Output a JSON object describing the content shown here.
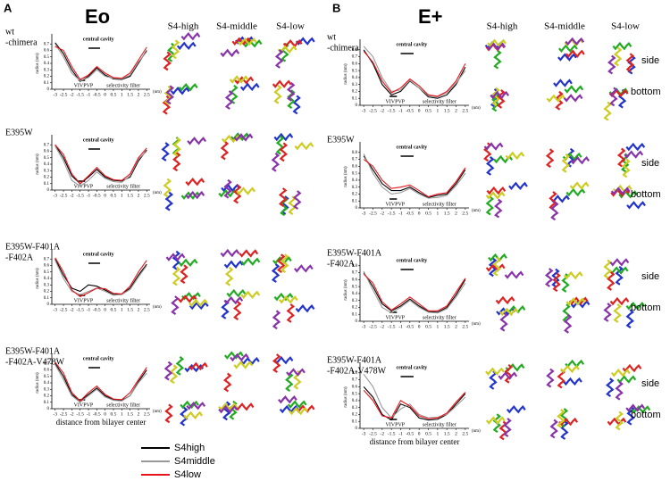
{
  "panels": [
    {
      "letter": "A",
      "title": "Eo",
      "columns": [
        "S4-high",
        "S4-middle",
        "S4-low"
      ]
    },
    {
      "letter": "B",
      "title": "E+",
      "columns": [
        "S4-high",
        "S4-middle",
        "S4-low"
      ],
      "view_labels": [
        "side",
        "bottom"
      ]
    }
  ],
  "chart_data": [
    {
      "type": "line",
      "title_lines": [
        "wt",
        "-chimera"
      ],
      "ylabel": "radius (nm)",
      "xunit": "(nm)",
      "annotations": {
        "cavity": "central cavity",
        "gate": "VIVPVP",
        "filter": "selectivity filter"
      },
      "x": [
        -3,
        -2.5,
        -2,
        -1.5,
        -1,
        -0.5,
        0,
        0.5,
        1,
        1.5,
        2,
        2.5
      ],
      "xlim": [
        -3.2,
        2.7
      ],
      "xticks": [
        -3,
        -2.5,
        -2,
        -1.5,
        -1,
        -0.5,
        0,
        0.5,
        1,
        1.5,
        2,
        2.5
      ],
      "ylim": [
        0,
        0.8
      ],
      "yticks": [
        0,
        0.1,
        0.2,
        0.3,
        0.4,
        0.5,
        0.6,
        0.7
      ],
      "series": [
        {
          "name": "S4high",
          "color": "#000000",
          "values": [
            0.72,
            0.55,
            0.3,
            0.12,
            0.2,
            0.33,
            0.22,
            0.16,
            0.15,
            0.2,
            0.4,
            0.6
          ]
        },
        {
          "name": "S4middle",
          "color": "#999999",
          "values": [
            0.7,
            0.5,
            0.25,
            0.13,
            0.18,
            0.3,
            0.2,
            0.17,
            0.16,
            0.22,
            0.42,
            0.58
          ]
        },
        {
          "name": "S4low",
          "color": "#e8141b",
          "values": [
            0.66,
            0.6,
            0.35,
            0.15,
            0.22,
            0.35,
            0.25,
            0.18,
            0.17,
            0.25,
            0.45,
            0.65
          ]
        }
      ]
    },
    {
      "type": "line",
      "title_lines": [
        "E395W"
      ],
      "ylabel": "radius (nm)",
      "xunit": "(nm)",
      "annotations": {
        "cavity": "central cavity",
        "gate": "VIVPVP",
        "filter": "selectivity filter"
      },
      "x": [
        -3,
        -2.5,
        -2,
        -1.5,
        -1,
        -0.5,
        0,
        0.5,
        1,
        1.5,
        2,
        2.5
      ],
      "xlim": [
        -3.2,
        2.7
      ],
      "xticks": [
        -3,
        -2.5,
        -2,
        -1.5,
        -1,
        -0.5,
        0,
        0.5,
        1,
        1.5,
        2,
        2.5
      ],
      "ylim": [
        0,
        0.8
      ],
      "yticks": [
        0,
        0.1,
        0.2,
        0.3,
        0.4,
        0.5,
        0.6,
        0.7
      ],
      "series": [
        {
          "name": "S4high",
          "color": "#000000",
          "values": [
            0.7,
            0.5,
            0.22,
            0.1,
            0.2,
            0.32,
            0.2,
            0.15,
            0.14,
            0.2,
            0.45,
            0.62
          ]
        },
        {
          "name": "S4middle",
          "color": "#999999",
          "values": [
            0.68,
            0.45,
            0.15,
            0.06,
            0.15,
            0.28,
            0.18,
            0.13,
            0.12,
            0.22,
            0.48,
            0.6
          ]
        },
        {
          "name": "S4low",
          "color": "#e8141b",
          "values": [
            0.7,
            0.55,
            0.25,
            0.1,
            0.22,
            0.35,
            0.22,
            0.16,
            0.15,
            0.25,
            0.5,
            0.65
          ]
        }
      ]
    },
    {
      "type": "line",
      "title_lines": [
        "E395W-F401A",
        "-F402A"
      ],
      "ylabel": "radius (nm)",
      "xunit": "(nm)",
      "annotations": {
        "cavity": "central cavity",
        "gate": "VIVPVP",
        "filter": "selectivity filter"
      },
      "x": [
        -3,
        -2.5,
        -2,
        -1.5,
        -1,
        -0.5,
        0,
        0.5,
        1,
        1.5,
        2,
        2.5
      ],
      "xlim": [
        -3.2,
        2.7
      ],
      "xticks": [
        -3,
        -2.5,
        -2,
        -1.5,
        -1,
        -0.5,
        0,
        0.5,
        1,
        1.5,
        2,
        2.5
      ],
      "ylim": [
        0,
        0.8
      ],
      "yticks": [
        0,
        0.1,
        0.2,
        0.3,
        0.4,
        0.5,
        0.6,
        0.7
      ],
      "series": [
        {
          "name": "S4high",
          "color": "#000000",
          "values": [
            0.7,
            0.45,
            0.25,
            0.2,
            0.3,
            0.28,
            0.22,
            0.15,
            0.16,
            0.25,
            0.45,
            0.62
          ]
        },
        {
          "name": "S4middle",
          "color": "#999999",
          "values": [
            0.68,
            0.4,
            0.2,
            0.15,
            0.2,
            0.25,
            0.2,
            0.14,
            0.15,
            0.23,
            0.42,
            0.6
          ]
        },
        {
          "name": "S4low",
          "color": "#e8141b",
          "values": [
            0.72,
            0.5,
            0.22,
            0.12,
            0.18,
            0.25,
            0.24,
            0.17,
            0.16,
            0.28,
            0.5,
            0.68
          ]
        }
      ]
    },
    {
      "type": "line",
      "title_lines": [
        "E395W-F401A",
        "-F402A-V478W"
      ],
      "ylabel": "radius (nm)",
      "xunit": "(nm)",
      "xlabel": "distance from bilayer center",
      "annotations": {
        "cavity": "central cavity",
        "gate": "VIVPVP",
        "filter": "selectivity filter"
      },
      "x": [
        -3,
        -2.5,
        -2,
        -1.5,
        -1,
        -0.5,
        0,
        0.5,
        1,
        1.5,
        2,
        2.5
      ],
      "xlim": [
        -3.2,
        2.7
      ],
      "xticks": [
        -3,
        -2.5,
        -2,
        -1.5,
        -1,
        -0.5,
        0,
        0.5,
        1,
        1.5,
        2,
        2.5
      ],
      "ylim": [
        0,
        0.8
      ],
      "yticks": [
        0,
        0.1,
        0.2,
        0.3,
        0.4,
        0.5,
        0.6,
        0.7
      ],
      "series": [
        {
          "name": "S4high",
          "color": "#000000",
          "values": [
            0.7,
            0.5,
            0.22,
            0.12,
            0.22,
            0.32,
            0.2,
            0.14,
            0.13,
            0.2,
            0.42,
            0.6
          ]
        },
        {
          "name": "S4middle",
          "color": "#999999",
          "values": [
            0.68,
            0.45,
            0.2,
            0.1,
            0.2,
            0.3,
            0.18,
            0.13,
            0.12,
            0.2,
            0.4,
            0.55
          ]
        },
        {
          "name": "S4low",
          "color": "#e8141b",
          "values": [
            0.72,
            0.55,
            0.25,
            0.12,
            0.25,
            0.35,
            0.22,
            0.15,
            0.14,
            0.25,
            0.45,
            0.64
          ]
        }
      ]
    },
    {
      "type": "line",
      "title_lines": [
        "wt",
        "-chimera"
      ],
      "ylabel": "radius (nm)",
      "xunit": "(nm)",
      "annotations": {
        "cavity": "central cavity",
        "gate": "VIVPVP",
        "filter": "selectivity filter"
      },
      "x": [
        -3,
        -2.5,
        -2,
        -1.5,
        -1,
        -0.5,
        0,
        0.5,
        1,
        1.5,
        2,
        2.5
      ],
      "xlim": [
        -3.2,
        2.7
      ],
      "xticks": [
        -3,
        -2.5,
        -2,
        -1.5,
        -1,
        -0.5,
        0,
        0.5,
        1,
        1.5,
        2,
        2.5
      ],
      "ylim": [
        0,
        0.9
      ],
      "yticks": [
        0,
        0.1,
        0.2,
        0.3,
        0.4,
        0.5,
        0.6,
        0.7,
        0.8
      ],
      "series": [
        {
          "name": "S4high",
          "color": "#000000",
          "values": [
            0.8,
            0.6,
            0.3,
            0.15,
            0.2,
            0.35,
            0.25,
            0.12,
            0.1,
            0.15,
            0.3,
            0.55
          ]
        },
        {
          "name": "S4middle",
          "color": "#999999",
          "values": [
            0.85,
            0.7,
            0.4,
            0.2,
            0.22,
            0.36,
            0.25,
            0.14,
            0.12,
            0.18,
            0.32,
            0.5
          ]
        },
        {
          "name": "S4low",
          "color": "#e8141b",
          "values": [
            0.78,
            0.62,
            0.35,
            0.18,
            0.25,
            0.38,
            0.28,
            0.15,
            0.13,
            0.2,
            0.35,
            0.6
          ]
        }
      ]
    },
    {
      "type": "line",
      "title_lines": [
        "E395W"
      ],
      "ylabel": "radius (nm)",
      "xunit": "(nm)",
      "annotations": {
        "cavity": "central cavity",
        "gate": "VIVPVP",
        "filter": "selectivity filter"
      },
      "x": [
        -3,
        -2.5,
        -2,
        -1.5,
        -1,
        -0.5,
        0,
        0.5,
        1,
        1.5,
        2,
        2.5
      ],
      "xlim": [
        -3.2,
        2.7
      ],
      "xticks": [
        -3,
        -2.5,
        -2,
        -1.5,
        -1,
        -0.5,
        0,
        0.5,
        1,
        1.5,
        2,
        2.5
      ],
      "ylim": [
        0,
        0.9
      ],
      "yticks": [
        0,
        0.1,
        0.2,
        0.3,
        0.4,
        0.5,
        0.6,
        0.7,
        0.8
      ],
      "series": [
        {
          "name": "S4high",
          "color": "#000000",
          "values": [
            0.75,
            0.55,
            0.35,
            0.25,
            0.25,
            0.3,
            0.22,
            0.15,
            0.18,
            0.2,
            0.35,
            0.55
          ]
        },
        {
          "name": "S4middle",
          "color": "#999999",
          "values": [
            0.78,
            0.5,
            0.3,
            0.2,
            0.22,
            0.28,
            0.2,
            0.14,
            0.15,
            0.18,
            0.32,
            0.5
          ]
        },
        {
          "name": "S4low",
          "color": "#e8141b",
          "values": [
            0.7,
            0.6,
            0.4,
            0.28,
            0.3,
            0.33,
            0.25,
            0.16,
            0.2,
            0.22,
            0.38,
            0.58
          ]
        }
      ]
    },
    {
      "type": "line",
      "title_lines": [
        "E395W-F401A",
        "-F402A"
      ],
      "ylabel": "radius (nm)",
      "xunit": "(nm)",
      "annotations": {
        "cavity": "central cavity",
        "gate": "VIVPVP",
        "filter": "selectivity filter"
      },
      "x": [
        -3,
        -2.5,
        -2,
        -1.5,
        -1,
        -0.5,
        0,
        0.5,
        1,
        1.5,
        2,
        2.5
      ],
      "xlim": [
        -3.2,
        2.7
      ],
      "xticks": [
        -3,
        -2.5,
        -2,
        -1.5,
        -1,
        -0.5,
        0,
        0.5,
        1,
        1.5,
        2,
        2.5
      ],
      "ylim": [
        0,
        0.9
      ],
      "yticks": [
        0,
        0.1,
        0.2,
        0.3,
        0.4,
        0.5,
        0.6,
        0.7,
        0.8
      ],
      "series": [
        {
          "name": "S4high",
          "color": "#000000",
          "values": [
            0.7,
            0.5,
            0.25,
            0.15,
            0.22,
            0.32,
            0.22,
            0.14,
            0.13,
            0.2,
            0.38,
            0.6
          ]
        },
        {
          "name": "S4middle",
          "color": "#999999",
          "values": [
            0.72,
            0.45,
            0.2,
            0.12,
            0.2,
            0.3,
            0.2,
            0.13,
            0.12,
            0.18,
            0.35,
            0.55
          ]
        },
        {
          "name": "S4low",
          "color": "#e8141b",
          "values": [
            0.68,
            0.55,
            0.28,
            0.16,
            0.25,
            0.35,
            0.25,
            0.15,
            0.15,
            0.22,
            0.42,
            0.62
          ]
        }
      ]
    },
    {
      "type": "line",
      "title_lines": [
        "E395W-F401A",
        "-F402A-V478W"
      ],
      "ylabel": "radius (nm)",
      "xunit": "(nm)",
      "xlabel": "distance from bilayer center",
      "annotations": {
        "cavity": "central cavity",
        "gate": "VIVPVP",
        "filter": "selectivity filter"
      },
      "x": [
        -3,
        -2.5,
        -2,
        -1.5,
        -1,
        -0.5,
        0,
        0.5,
        1,
        1.5,
        2,
        2.5
      ],
      "xlim": [
        -3.2,
        2.7
      ],
      "xticks": [
        -3,
        -2.5,
        -2,
        -1.5,
        -1,
        -0.5,
        0,
        0.5,
        1,
        1.5,
        2,
        2.5
      ],
      "ylim": [
        0,
        0.9
      ],
      "yticks": [
        0,
        0.1,
        0.2,
        0.3,
        0.4,
        0.5,
        0.6,
        0.7,
        0.8
      ],
      "series": [
        {
          "name": "S4high",
          "color": "#000000",
          "values": [
            0.6,
            0.45,
            0.2,
            0.12,
            0.35,
            0.3,
            0.15,
            0.12,
            0.13,
            0.2,
            0.35,
            0.5
          ]
        },
        {
          "name": "S4middle",
          "color": "#999999",
          "values": [
            0.78,
            0.6,
            0.3,
            0.15,
            0.28,
            0.35,
            0.2,
            0.15,
            0.16,
            0.2,
            0.32,
            0.45
          ]
        },
        {
          "name": "S4low",
          "color": "#e8141b",
          "values": [
            0.55,
            0.4,
            0.18,
            0.15,
            0.4,
            0.32,
            0.18,
            0.14,
            0.15,
            0.22,
            0.38,
            0.52
          ]
        }
      ]
    }
  ]
}
